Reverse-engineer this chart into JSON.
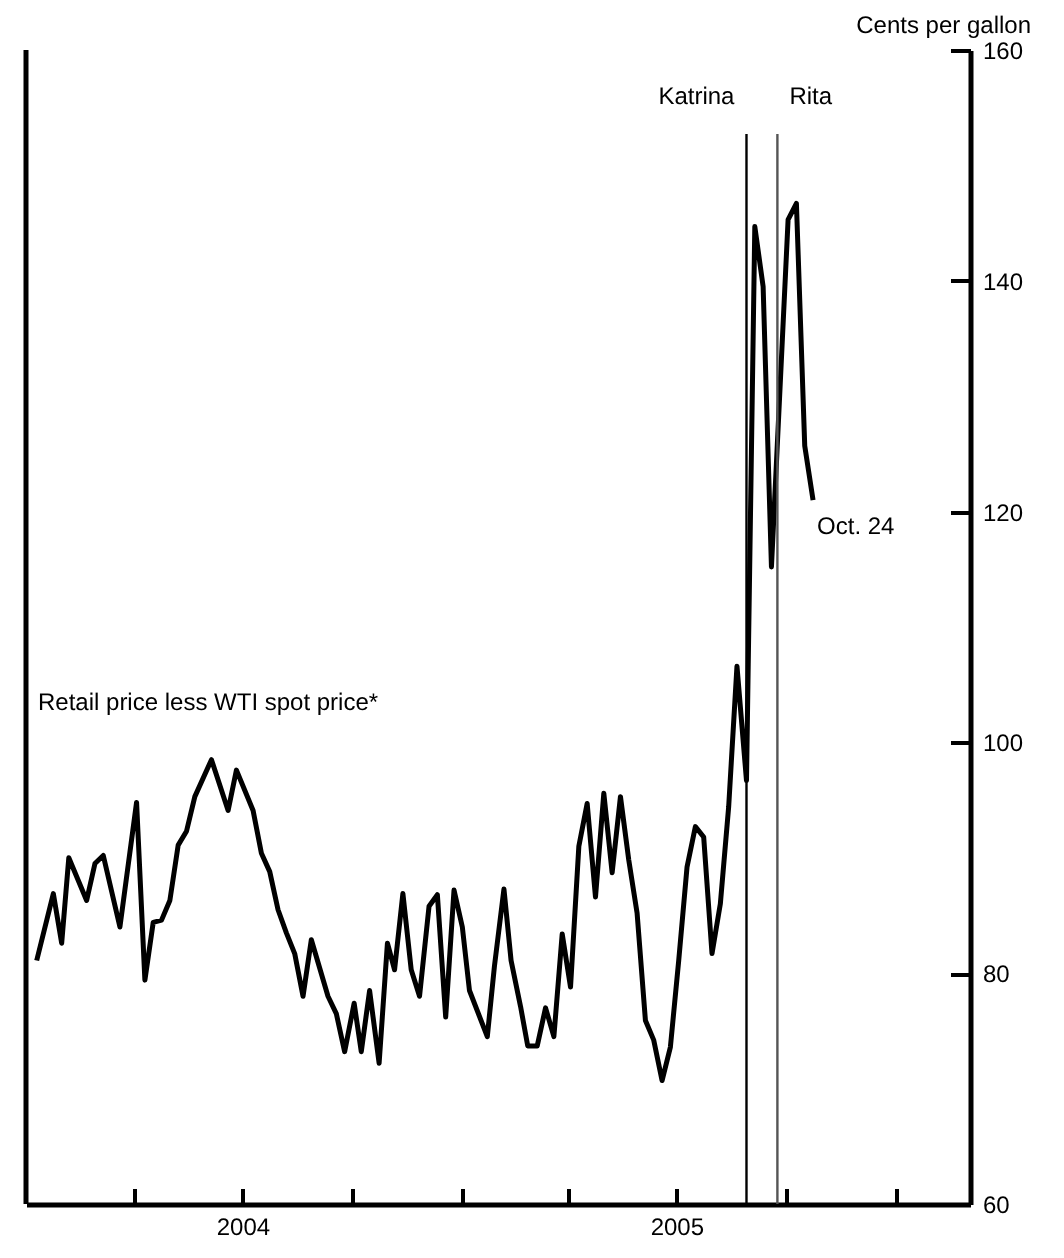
{
  "chart_data": {
    "type": "line",
    "ylabel": "Cents per gallon",
    "x": [
      "2004-01-10",
      "2004-01-24",
      "2004-01-31",
      "2004-02-06",
      "2004-02-21",
      "2004-02-28",
      "2004-03-06",
      "2004-03-20",
      "2004-04-03",
      "2004-04-10",
      "2004-04-17",
      "2004-04-24",
      "2004-05-01",
      "2004-05-08",
      "2004-05-15",
      "2004-05-22",
      "2004-06-05",
      "2004-06-19",
      "2004-06-26",
      "2004-07-10",
      "2004-07-17",
      "2004-07-24",
      "2004-07-31",
      "2004-08-07",
      "2004-08-14",
      "2004-08-21",
      "2004-08-28",
      "2004-09-11",
      "2004-09-18",
      "2004-09-25",
      "2004-10-03",
      "2004-10-09",
      "2004-10-16",
      "2004-10-24",
      "2004-10-31",
      "2004-11-06",
      "2004-11-13",
      "2004-11-20",
      "2004-11-27",
      "2004-12-05",
      "2004-12-12",
      "2004-12-19",
      "2004-12-26",
      "2005-01-02",
      "2005-01-08",
      "2005-01-23",
      "2005-01-29",
      "2005-02-06",
      "2005-02-12",
      "2005-02-20",
      "2005-02-26",
      "2005-03-06",
      "2005-03-13",
      "2005-03-20",
      "2005-03-27",
      "2005-04-03",
      "2005-04-10",
      "2005-04-17",
      "2005-04-24",
      "2005-05-01",
      "2005-05-08",
      "2005-05-15",
      "2005-05-22",
      "2005-05-29",
      "2005-06-05",
      "2005-06-12",
      "2005-06-19",
      "2005-06-26",
      "2005-07-03",
      "2005-07-10",
      "2005-07-17",
      "2005-07-24",
      "2005-07-31",
      "2005-08-07",
      "2005-08-14",
      "2005-08-21",
      "2005-08-29",
      "2005-09-05",
      "2005-09-12",
      "2005-09-19",
      "2005-10-03",
      "2005-10-10",
      "2005-10-17",
      "2005-10-24"
    ],
    "series": [
      {
        "name": "Retail price less WTI spot price*",
        "color": "#000000",
        "values": [
          81.1,
          86.9,
          82.6,
          90.0,
          86.3,
          89.5,
          90.2,
          84.0,
          94.8,
          79.4,
          84.4,
          84.6,
          86.3,
          91.1,
          92.3,
          95.3,
          98.5,
          94.1,
          97.6,
          94.1,
          90.4,
          88.8,
          85.5,
          83.5,
          81.7,
          78.0,
          82.9,
          78.0,
          76.5,
          73.2,
          77.4,
          73.2,
          78.5,
          72.2,
          82.6,
          80.3,
          86.9,
          80.3,
          78.0,
          85.8,
          86.8,
          76.2,
          87.2,
          84.0,
          78.5,
          74.5,
          80.6,
          87.3,
          81.1,
          77.1,
          73.7,
          73.7,
          77.0,
          74.5,
          83.4,
          78.8,
          91.0,
          94.7,
          86.6,
          95.6,
          88.7,
          95.3,
          89.8,
          85.2,
          75.9,
          74.2,
          70.7,
          73.6,
          81.1,
          89.2,
          92.7,
          91.8,
          81.7,
          86.0,
          94.4,
          106.6,
          96.7,
          144.7,
          139.5,
          115.2,
          145.3,
          146.7,
          125.7,
          121.0
        ]
      }
    ],
    "xlim": [
      "2004-01-01",
      "2006-03-05"
    ],
    "xticks": [
      {
        "value": "2004-04-01",
        "label": null
      },
      {
        "value": "2004-07-01",
        "label": "2004"
      },
      {
        "value": "2004-10-01",
        "label": null
      },
      {
        "value": "2005-01-01",
        "label": null
      },
      {
        "value": "2005-04-01",
        "label": null
      },
      {
        "value": "2005-07-01",
        "label": "2005"
      },
      {
        "value": "2005-10-01",
        "label": null
      },
      {
        "value": "2006-01-01",
        "label": null
      }
    ],
    "ylim": [
      60,
      160
    ],
    "yticks": [
      60,
      80,
      100,
      120,
      140,
      160
    ],
    "grid": false,
    "legend": false,
    "marker": "none",
    "line_style": "solid",
    "ref_lines": [
      {
        "axis": "x",
        "value": "2005-08-29",
        "label": "Katrina",
        "color": "#000000"
      },
      {
        "axis": "x",
        "value": "2005-09-24",
        "label": "Rita",
        "color": "#555555"
      }
    ],
    "annotations": [
      {
        "text": "Oct. 24",
        "x": "2005-10-24",
        "y": 121.0
      }
    ]
  }
}
